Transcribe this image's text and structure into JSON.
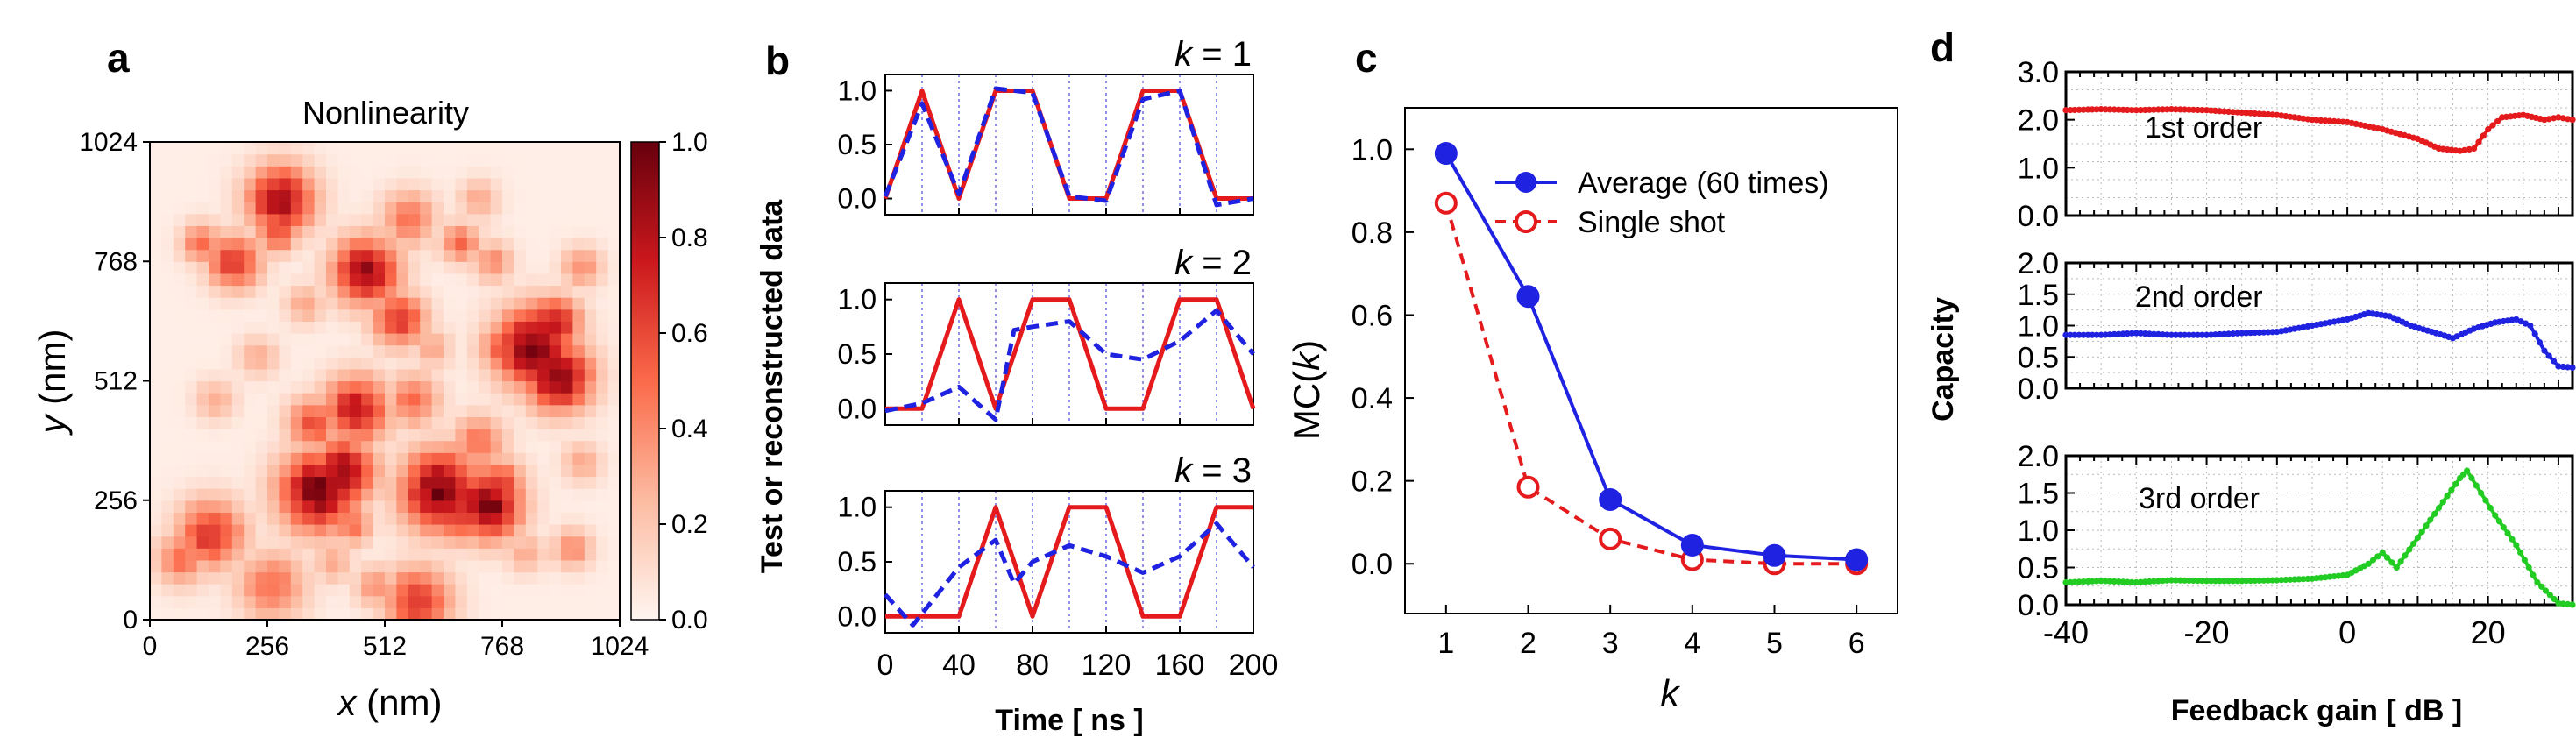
{
  "colors": {
    "red": "#e41a1c",
    "blue": "#1f22e0",
    "green": "#22cc22",
    "heat_low": "#fff5f0",
    "heat_high": "#67000d",
    "grid": "#b9b9b9",
    "vline": "#6e6ee8"
  },
  "chart_data": [
    {
      "panel": "a",
      "type": "heatmap",
      "title": "Nonlinearity",
      "xlabel": "x (nm)",
      "ylabel": "y (nm)",
      "xlabel_var": "x",
      "ylabel_var": "y",
      "xlabel_unit": " (nm)",
      "ylabel_unit": " (nm)",
      "xlim": [
        0,
        1024
      ],
      "ylim": [
        0,
        1024
      ],
      "xticks": [
        0,
        256,
        512,
        768,
        1024
      ],
      "yticks": [
        0,
        256,
        512,
        768,
        1024
      ],
      "colorbar": {
        "range": [
          0.0,
          1.0
        ],
        "ticks": [
          0.0,
          0.2,
          0.4,
          0.6,
          0.8,
          1.0
        ],
        "tick_labels": [
          "0.0",
          "0.2",
          "0.4",
          "0.6",
          "0.8",
          "1.0"
        ]
      },
      "grid_size": 40,
      "blobs": [
        [
          0.28,
          0.88,
          0.05,
          0.9
        ],
        [
          0.26,
          0.07,
          0.05,
          0.5
        ],
        [
          0.36,
          0.27,
          0.06,
          1.0
        ],
        [
          0.41,
          0.31,
          0.05,
          0.9
        ],
        [
          0.44,
          0.44,
          0.05,
          0.8
        ],
        [
          0.35,
          0.41,
          0.04,
          0.6
        ],
        [
          0.62,
          0.27,
          0.06,
          1.0
        ],
        [
          0.66,
          0.22,
          0.04,
          0.7
        ],
        [
          0.72,
          0.24,
          0.05,
          1.0
        ],
        [
          0.74,
          0.28,
          0.04,
          0.7
        ],
        [
          0.7,
          0.37,
          0.04,
          0.5
        ],
        [
          0.82,
          0.57,
          0.06,
          1.0
        ],
        [
          0.87,
          0.51,
          0.05,
          1.0
        ],
        [
          0.86,
          0.62,
          0.04,
          0.8
        ],
        [
          0.76,
          0.57,
          0.04,
          0.6
        ],
        [
          0.46,
          0.73,
          0.05,
          0.9
        ],
        [
          0.53,
          0.63,
          0.04,
          0.7
        ],
        [
          0.5,
          0.71,
          0.03,
          0.6
        ],
        [
          0.18,
          0.75,
          0.04,
          0.7
        ],
        [
          0.13,
          0.18,
          0.05,
          0.7
        ],
        [
          0.07,
          0.13,
          0.04,
          0.5
        ],
        [
          0.57,
          0.04,
          0.05,
          0.7
        ],
        [
          0.43,
          0.2,
          0.03,
          0.5
        ],
        [
          0.55,
          0.84,
          0.04,
          0.5
        ],
        [
          0.56,
          0.46,
          0.04,
          0.5
        ],
        [
          0.66,
          0.79,
          0.03,
          0.5
        ],
        [
          0.73,
          0.75,
          0.03,
          0.4
        ],
        [
          0.92,
          0.74,
          0.03,
          0.4
        ],
        [
          0.9,
          0.15,
          0.03,
          0.4
        ],
        [
          0.14,
          0.46,
          0.03,
          0.3
        ],
        [
          0.11,
          0.79,
          0.03,
          0.5
        ],
        [
          0.27,
          0.81,
          0.03,
          0.6
        ],
        [
          0.48,
          0.07,
          0.03,
          0.4
        ],
        [
          0.39,
          0.12,
          0.03,
          0.3
        ],
        [
          0.8,
          0.14,
          0.03,
          0.3
        ],
        [
          0.92,
          0.33,
          0.03,
          0.3
        ],
        [
          0.6,
          0.57,
          0.03,
          0.3
        ],
        [
          0.23,
          0.55,
          0.03,
          0.3
        ],
        [
          0.33,
          0.66,
          0.03,
          0.3
        ],
        [
          0.7,
          0.88,
          0.03,
          0.3
        ]
      ]
    },
    {
      "panel": "b",
      "type": "line",
      "xlabel": "Time [ ns ]",
      "ylabel": "Test or reconstructed data",
      "xlim": [
        0,
        200
      ],
      "ylim": [
        -0.15,
        1.15
      ],
      "xticks": [
        0,
        40,
        80,
        120,
        160,
        200
      ],
      "yticks": [
        0.0,
        0.5,
        1.0
      ],
      "ytick_labels": [
        "0.0",
        "0.5",
        "1.0"
      ],
      "vlines": [
        20,
        40,
        60,
        80,
        100,
        120,
        140,
        160,
        180
      ],
      "subplots": [
        {
          "k_label": "k = 1",
          "k_var": "k",
          "k_value": " = 1",
          "test": {
            "x": [
              0,
              20,
              40,
              60,
              80,
              100,
              120,
              140,
              160,
              180,
              200
            ],
            "y": [
              0,
              1,
              0,
              1,
              1,
              0,
              0,
              1,
              1,
              0,
              0
            ]
          },
          "reconstructed": {
            "x": [
              0,
              20,
              40,
              60,
              80,
              100,
              120,
              140,
              160,
              180,
              200
            ],
            "y": [
              0.02,
              0.88,
              0.04,
              1.02,
              0.98,
              0.02,
              -0.02,
              0.92,
              1.0,
              -0.06,
              0.0
            ]
          }
        },
        {
          "k_label": "k = 2",
          "k_var": "k",
          "k_value": " = 2",
          "test": {
            "x": [
              0,
              20,
              40,
              60,
              80,
              100,
              120,
              140,
              160,
              180,
              200
            ],
            "y": [
              0,
              0,
              1,
              0,
              1,
              1,
              0,
              0,
              1,
              1,
              0
            ]
          },
          "reconstructed": {
            "x": [
              0,
              20,
              40,
              60,
              70,
              80,
              100,
              120,
              140,
              160,
              180,
              200
            ],
            "y": [
              -0.02,
              0.05,
              0.2,
              -0.1,
              0.72,
              0.75,
              0.8,
              0.5,
              0.45,
              0.62,
              0.9,
              0.5
            ]
          }
        },
        {
          "k_label": "k = 3",
          "k_var": "k",
          "k_value": " = 3",
          "test": {
            "x": [
              0,
              20,
              40,
              60,
              80,
              100,
              120,
              140,
              160,
              180,
              200
            ],
            "y": [
              0,
              0,
              0,
              1,
              0,
              1,
              1,
              0,
              0,
              1,
              1
            ]
          },
          "reconstructed": {
            "x": [
              0,
              15,
              40,
              60,
              70,
              80,
              100,
              120,
              140,
              160,
              180,
              200
            ],
            "y": [
              0.2,
              -0.08,
              0.45,
              0.7,
              0.3,
              0.5,
              0.65,
              0.55,
              0.4,
              0.55,
              0.85,
              0.45
            ]
          }
        }
      ]
    },
    {
      "panel": "c",
      "type": "line",
      "xlabel": "k",
      "ylabel": "MC(k)",
      "ylabel_prefix": "MC(",
      "ylabel_var": "k",
      "ylabel_suffix": ")",
      "xlim": [
        0.5,
        6.5
      ],
      "ylim": [
        -0.12,
        1.1
      ],
      "xticks": [
        1,
        2,
        3,
        4,
        5,
        6
      ],
      "yticks": [
        0.0,
        0.2,
        0.4,
        0.6,
        0.8,
        1.0
      ],
      "ytick_labels": [
        "0.0",
        "0.2",
        "0.4",
        "0.6",
        "0.8",
        "1.0"
      ],
      "legend_position": "top-right",
      "series": [
        {
          "name": "Average (60 times)",
          "x": [
            1,
            2,
            3,
            4,
            5,
            6
          ],
          "values": [
            0.99,
            0.645,
            0.155,
            0.045,
            0.02,
            0.01
          ],
          "style": "solid-filled"
        },
        {
          "name": "Single shot",
          "x": [
            1,
            2,
            3,
            4,
            5,
            6
          ],
          "values": [
            0.87,
            0.185,
            0.06,
            0.01,
            0.0,
            0.0
          ],
          "style": "dashed-open"
        }
      ]
    },
    {
      "panel": "d",
      "type": "line",
      "xlabel": "Feedback gain [ dB ]",
      "ylabel": "Capacity",
      "xlim": [
        -40,
        32
      ],
      "xticks": [
        -40,
        -20,
        0,
        20
      ],
      "subplots": [
        {
          "name": "1st order",
          "ylim": [
            0,
            3.0
          ],
          "yticks": [
            0.0,
            1.0,
            2.0,
            3.0
          ],
          "ytick_labels": [
            "0.0",
            "1.0",
            "2.0",
            "3.0"
          ],
          "x": [
            -40,
            -35,
            -30,
            -25,
            -20,
            -15,
            -10,
            -5,
            0,
            5,
            10,
            13,
            16,
            18,
            20,
            22,
            25,
            28,
            30,
            32
          ],
          "values": [
            2.2,
            2.22,
            2.2,
            2.22,
            2.2,
            2.15,
            2.1,
            2.0,
            1.95,
            1.8,
            1.6,
            1.4,
            1.35,
            1.4,
            1.8,
            2.05,
            2.1,
            2.0,
            2.05,
            2.0
          ]
        },
        {
          "name": "2nd order",
          "ylim": [
            0,
            2.0
          ],
          "yticks": [
            0.0,
            0.5,
            1.0,
            1.5,
            2.0
          ],
          "ytick_labels": [
            "0.0",
            "0.5",
            "1.0",
            "1.5",
            "2.0"
          ],
          "x": [
            -40,
            -35,
            -30,
            -25,
            -20,
            -15,
            -10,
            -5,
            0,
            3,
            6,
            9,
            12,
            15,
            18,
            21,
            24,
            26,
            28,
            30,
            32
          ],
          "values": [
            0.85,
            0.85,
            0.88,
            0.85,
            0.85,
            0.88,
            0.9,
            1.0,
            1.1,
            1.2,
            1.15,
            1.0,
            0.9,
            0.8,
            0.95,
            1.05,
            1.1,
            1.0,
            0.6,
            0.35,
            0.33
          ]
        },
        {
          "name": "3rd order",
          "ylim": [
            0,
            2.0
          ],
          "yticks": [
            0.0,
            0.5,
            1.0,
            1.5,
            2.0
          ],
          "ytick_labels": [
            "0.0",
            "0.5",
            "1.0",
            "1.5",
            "2.0"
          ],
          "x": [
            -40,
            -35,
            -30,
            -25,
            -20,
            -15,
            -10,
            -5,
            0,
            3,
            5,
            7,
            10,
            13,
            16,
            17,
            19,
            21,
            24,
            27,
            30,
            32
          ],
          "values": [
            0.3,
            0.32,
            0.3,
            0.33,
            0.32,
            0.32,
            0.33,
            0.35,
            0.4,
            0.55,
            0.7,
            0.5,
            0.9,
            1.3,
            1.7,
            1.8,
            1.5,
            1.2,
            0.8,
            0.3,
            0.02,
            0.0
          ]
        }
      ]
    }
  ]
}
